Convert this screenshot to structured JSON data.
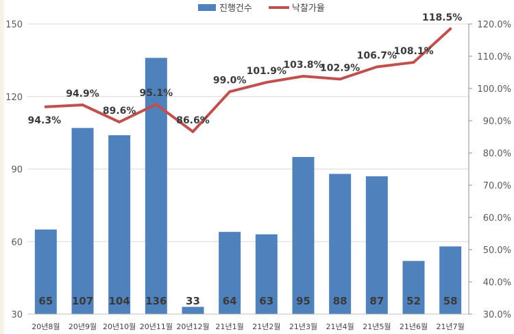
{
  "chart_data": {
    "type": "bar+line",
    "categories": [
      "20년8월",
      "20년9월",
      "20년10월",
      "20년11월",
      "20년12월",
      "21년1월",
      "21년2월",
      "21년3월",
      "21년4월",
      "21년5월",
      "21년6월",
      "21년7월"
    ],
    "series": [
      {
        "name": "진행건수",
        "type": "bar",
        "axis": "left",
        "color": "#4f81bd",
        "values": [
          65,
          107,
          104,
          136,
          33,
          64,
          63,
          95,
          88,
          87,
          52,
          58
        ],
        "labels": [
          "65",
          "107",
          "104",
          "136",
          "33",
          "64",
          "63",
          "95",
          "88",
          "87",
          "52",
          "58"
        ]
      },
      {
        "name": "낙찰가율",
        "type": "line",
        "axis": "right",
        "color": "#c0504d",
        "values": [
          94.3,
          94.9,
          89.6,
          95.1,
          86.6,
          99.0,
          101.9,
          103.8,
          102.9,
          106.7,
          108.1,
          118.5
        ],
        "labels": [
          "94.3%",
          "94.9%",
          "89.6%",
          "95.1%",
          "86.6%",
          "99.0%",
          "101.9%",
          "103.8%",
          "102.9%",
          "106.7%",
          "108.1%",
          "118.5%"
        ]
      }
    ],
    "y_left": {
      "min": 30,
      "max": 150,
      "ticks": [
        "30",
        "60",
        "90",
        "120",
        "150"
      ],
      "tick_values": [
        30,
        60,
        90,
        120,
        150
      ]
    },
    "y_right": {
      "min": 30,
      "max": 120,
      "ticks": [
        "30.0%",
        "40.0%",
        "50.0%",
        "60.0%",
        "70.0%",
        "80.0%",
        "90.0%",
        "100.0%",
        "110.0%",
        "120.0%"
      ],
      "tick_values": [
        30,
        40,
        50,
        60,
        70,
        80,
        90,
        100,
        110,
        120
      ]
    },
    "grid": "horizontal",
    "legend_position": "top-center",
    "title": "",
    "xlabel": "",
    "ylabel": ""
  }
}
